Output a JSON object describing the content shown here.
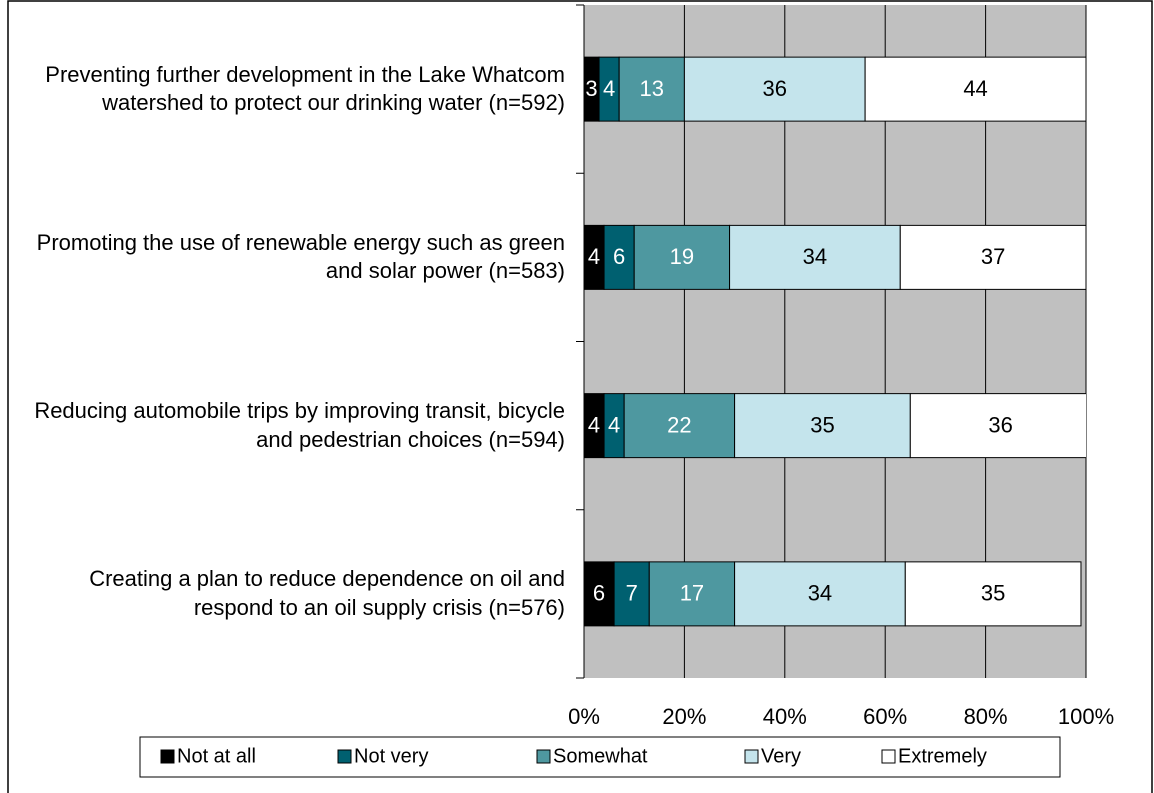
{
  "chart_data": {
    "type": "stacked-bar-horizontal",
    "categories": [
      "Preventing further development in the Lake Whatcom watershed to protect our drinking water (n=592)",
      "Promoting the use of renewable energy such as green and solar power (n=583)",
      "Reducing automobile trips by improving transit, bicycle and pedestrian choices (n=594)",
      "Creating a plan to reduce dependence on oil and respond to an oil supply crisis (n=576)"
    ],
    "series": [
      {
        "name": "Not at all",
        "color": "#000000",
        "label_color": "#ffffff",
        "values": [
          3,
          4,
          4,
          6
        ]
      },
      {
        "name": "Not very",
        "color": "#006070",
        "label_color": "#ffffff",
        "values": [
          4,
          6,
          4,
          7
        ]
      },
      {
        "name": "Somewhat",
        "color": "#4e98a0",
        "label_color": "#ffffff",
        "values": [
          13,
          19,
          22,
          17
        ]
      },
      {
        "name": "Very",
        "color": "#c4e4ec",
        "label_color": "#000000",
        "values": [
          36,
          34,
          35,
          34
        ]
      },
      {
        "name": "Extremely",
        "color": "#ffffff",
        "label_color": "#000000",
        "values": [
          44,
          37,
          36,
          35
        ]
      }
    ],
    "xlim": [
      0,
      100
    ],
    "xticks": [
      {
        "value": 0,
        "label": "0%"
      },
      {
        "value": 20,
        "label": "20%"
      },
      {
        "value": 40,
        "label": "40%"
      },
      {
        "value": 60,
        "label": "60%"
      },
      {
        "value": 80,
        "label": "80%"
      },
      {
        "value": 100,
        "label": "100%"
      }
    ],
    "grid": true,
    "plot_background": "#c0c0c0",
    "legend": "bottom"
  }
}
